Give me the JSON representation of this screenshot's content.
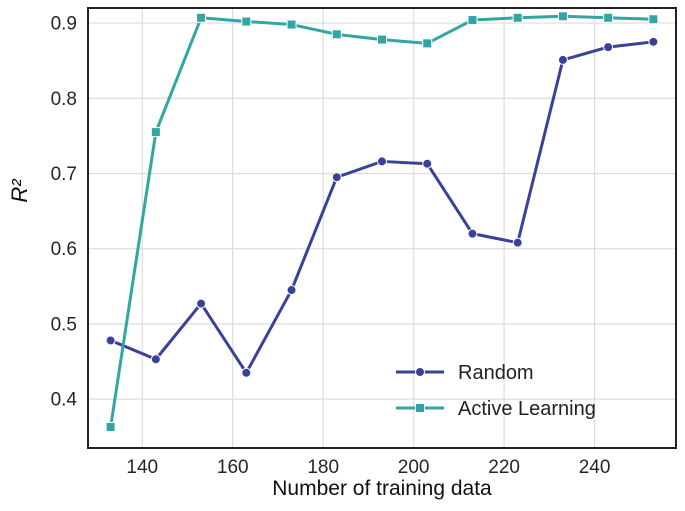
{
  "chart_data": {
    "type": "line",
    "title": "",
    "xlabel": "Number of training data",
    "ylabel": "R²",
    "x": [
      133,
      143,
      153,
      163,
      173,
      183,
      193,
      203,
      213,
      223,
      233,
      243,
      253
    ],
    "series": [
      {
        "name": "Random",
        "color": "#3a4198",
        "marker": "circle",
        "values": [
          0.478,
          0.453,
          0.527,
          0.435,
          0.545,
          0.695,
          0.716,
          0.713,
          0.62,
          0.608,
          0.851,
          0.868,
          0.875
        ]
      },
      {
        "name": "Active Learning",
        "color": "#31a6a4",
        "marker": "square",
        "values": [
          0.363,
          0.755,
          0.907,
          0.902,
          0.898,
          0.885,
          0.878,
          0.873,
          0.904,
          0.907,
          0.909,
          0.907,
          0.905
        ]
      }
    ],
    "xlim": [
      128,
      258
    ],
    "ylim": [
      0.335,
      0.92
    ],
    "xticks": [
      140,
      160,
      180,
      200,
      220,
      240
    ],
    "yticks": [
      0.4,
      0.5,
      0.6,
      0.7,
      0.8,
      0.9
    ],
    "grid": true,
    "legend_position": "lower-right-inside",
    "colors": {
      "grid": "#dcdcdc",
      "spine": "#222222",
      "tick_label": "#262626",
      "axis_label": "#111111",
      "legend_text": "#222222",
      "background": "#ffffff"
    }
  }
}
